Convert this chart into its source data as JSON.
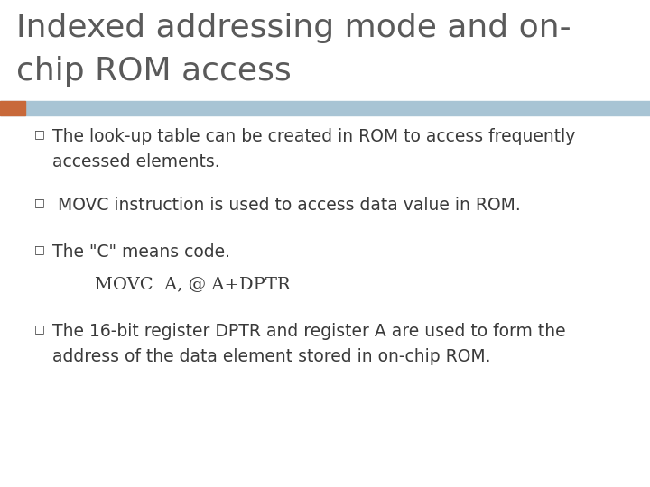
{
  "title_line1": "Indexed addressing mode and on-",
  "title_line2": "chip ROM access",
  "title_color": "#5a5a5a",
  "title_fontsize": 26,
  "bg_color": "#ffffff",
  "header_bar_color": "#a8c4d4",
  "header_bar_left_color": "#c8693a",
  "bullet_color": "#3a3a3a",
  "bullet_char": "□",
  "body_fontsize": 13.5,
  "code_fontsize": 14,
  "b1_l1": "The look-up table can be created in ROM to access frequently",
  "b1_l2": "accessed elements.",
  "b2_l1": " MOVC instruction is used to access data value in ROM.",
  "b3_l1": "The \"C\" means code.",
  "code_line": "MOVC  A, @ A+DPTR",
  "b4_l1": "The 16-bit register DPTR and register A are used to form the",
  "b4_l2": "address of the data element stored in on-chip ROM."
}
